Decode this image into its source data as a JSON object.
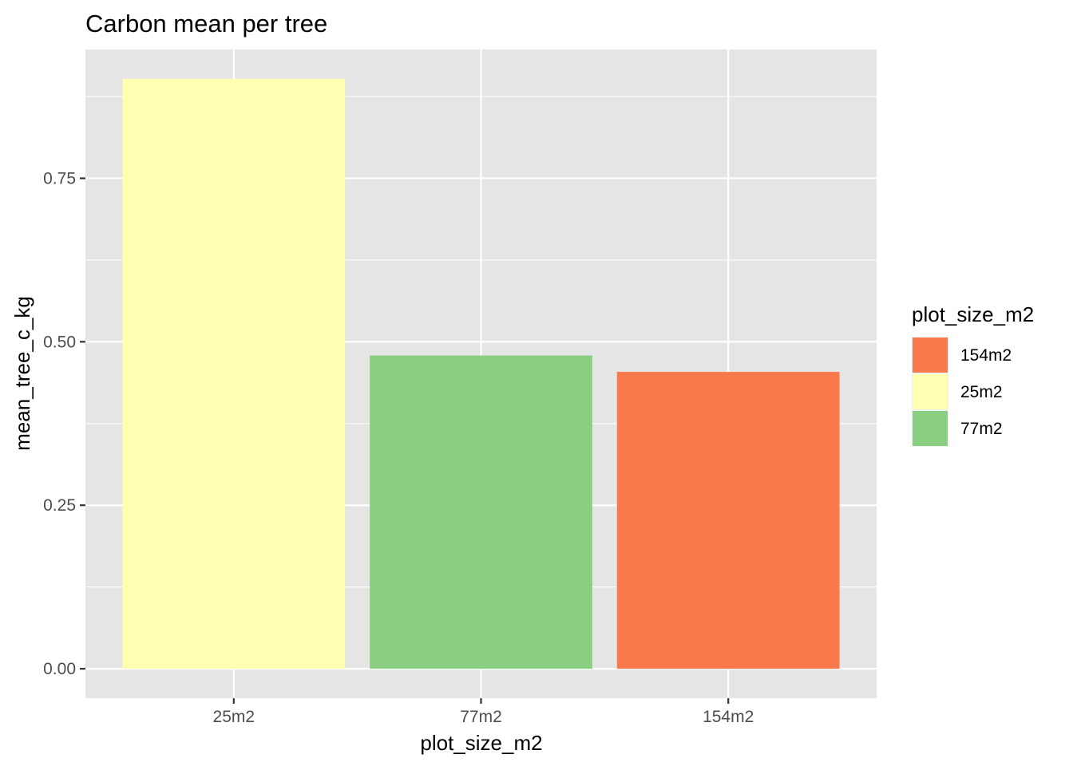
{
  "chart_data": {
    "type": "bar",
    "title": "Carbon mean per tree",
    "xlabel": "plot_size_m2",
    "ylabel": "mean_tree_c_kg",
    "categories": [
      "25m2",
      "77m2",
      "154m2"
    ],
    "values": [
      0.902,
      0.479,
      0.454
    ],
    "colors": [
      "#FFFFB2",
      "#8ACF81",
      "#F87A4A"
    ],
    "ylim": [
      -0.045,
      0.947
    ],
    "yticks": [
      0,
      0.25,
      0.5,
      0.75
    ],
    "ytick_labels": [
      "0.00",
      "0.25",
      "0.50",
      "0.75"
    ],
    "grid": true,
    "panel_background": "#E5E5E5",
    "legend": {
      "title": "plot_size_m2",
      "placement": "right",
      "entries": [
        {
          "label": "154m2",
          "color": "#F87A4A"
        },
        {
          "label": "25m2",
          "color": "#FFFFB2"
        },
        {
          "label": "77m2",
          "color": "#8ACF81"
        }
      ]
    }
  }
}
